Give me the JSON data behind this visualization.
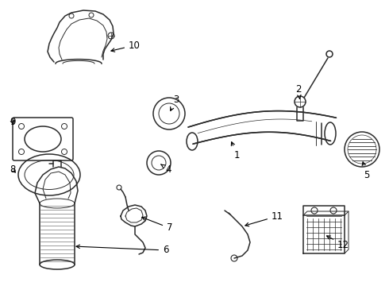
{
  "background": "#ffffff",
  "line_color": "#2a2a2a",
  "label_color": "#000000",
  "lw_main": 1.1,
  "lw_thin": 0.7,
  "label_fontsize": 8.5
}
